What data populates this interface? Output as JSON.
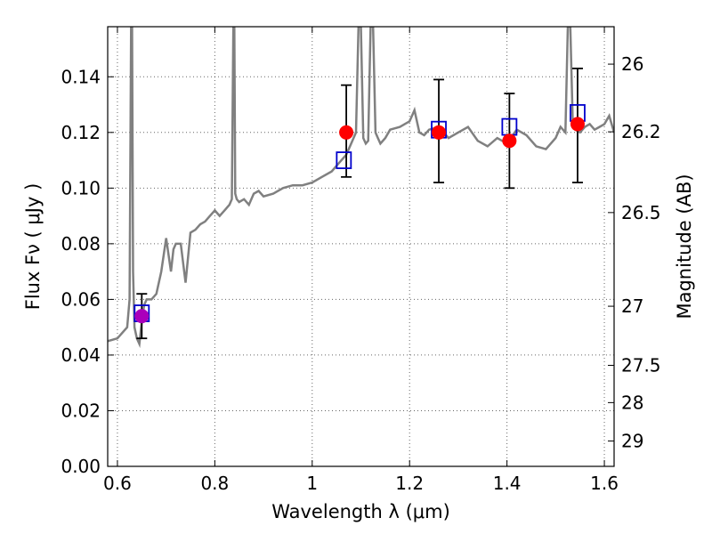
{
  "chart_data": {
    "type": "scatter",
    "xlabel": "Wavelength  λ (μm)",
    "ylabel": "Flux  Fν  ( μJy )",
    "ylabel_right": "Magnitude (AB)",
    "xlim": [
      0.58,
      1.62
    ],
    "ylim": [
      0.0,
      0.158
    ],
    "grid": true,
    "x_ticks": [
      0.6,
      0.8,
      1.0,
      1.2,
      1.4,
      1.6
    ],
    "x_tick_labels": [
      "0.6",
      "0.8",
      "1",
      "1.2",
      "1.4",
      "1.6"
    ],
    "y_ticks": [
      0.0,
      0.02,
      0.04,
      0.06,
      0.08,
      0.1,
      0.12,
      0.14
    ],
    "y_tick_labels": [
      "0.00",
      "0.02",
      "0.04",
      "0.06",
      "0.08",
      "0.10",
      "0.12",
      "0.14"
    ],
    "mag_ticks": [
      26,
      26.2,
      26.5,
      27,
      27.5,
      28,
      29
    ],
    "mag_tick_labels": [
      "26",
      "26.2",
      "26.5",
      "27",
      "27.5",
      "28",
      "29"
    ],
    "model_spectrum": {
      "color": "#808080",
      "x": [
        0.58,
        0.6,
        0.61,
        0.62,
        0.625,
        0.628,
        0.63,
        0.632,
        0.635,
        0.64,
        0.645,
        0.65,
        0.655,
        0.66,
        0.665,
        0.67,
        0.68,
        0.69,
        0.7,
        0.705,
        0.71,
        0.715,
        0.72,
        0.73,
        0.74,
        0.75,
        0.76,
        0.77,
        0.78,
        0.79,
        0.8,
        0.81,
        0.82,
        0.83,
        0.835,
        0.838,
        0.84,
        0.842,
        0.845,
        0.85,
        0.86,
        0.87,
        0.88,
        0.89,
        0.9,
        0.92,
        0.94,
        0.96,
        0.98,
        1.0,
        1.02,
        1.04,
        1.05,
        1.06,
        1.07,
        1.08,
        1.09,
        1.095,
        1.1,
        1.105,
        1.11,
        1.115,
        1.12,
        1.125,
        1.13,
        1.135,
        1.14,
        1.15,
        1.16,
        1.18,
        1.2,
        1.21,
        1.22,
        1.23,
        1.24,
        1.26,
        1.28,
        1.3,
        1.32,
        1.34,
        1.36,
        1.38,
        1.4,
        1.42,
        1.44,
        1.46,
        1.48,
        1.5,
        1.51,
        1.52,
        1.525,
        1.53,
        1.535,
        1.54,
        1.55,
        1.56,
        1.57,
        1.58,
        1.59,
        1.6,
        1.61,
        1.62
      ],
      "y": [
        0.045,
        0.046,
        0.048,
        0.05,
        0.06,
        0.158,
        0.158,
        0.07,
        0.05,
        0.046,
        0.044,
        0.052,
        0.058,
        0.06,
        0.06,
        0.06,
        0.062,
        0.07,
        0.082,
        0.076,
        0.07,
        0.078,
        0.08,
        0.08,
        0.066,
        0.084,
        0.085,
        0.087,
        0.088,
        0.09,
        0.092,
        0.09,
        0.092,
        0.094,
        0.096,
        0.158,
        0.158,
        0.098,
        0.096,
        0.095,
        0.096,
        0.094,
        0.098,
        0.099,
        0.097,
        0.098,
        0.1,
        0.101,
        0.101,
        0.102,
        0.104,
        0.106,
        0.108,
        0.11,
        0.112,
        0.116,
        0.12,
        0.158,
        0.158,
        0.118,
        0.116,
        0.117,
        0.158,
        0.158,
        0.12,
        0.118,
        0.116,
        0.118,
        0.121,
        0.122,
        0.124,
        0.128,
        0.12,
        0.119,
        0.121,
        0.122,
        0.118,
        0.12,
        0.122,
        0.117,
        0.115,
        0.118,
        0.116,
        0.121,
        0.119,
        0.115,
        0.114,
        0.118,
        0.122,
        0.12,
        0.158,
        0.158,
        0.124,
        0.121,
        0.12,
        0.122,
        0.123,
        0.121,
        0.122,
        0.123,
        0.126,
        0.12
      ]
    },
    "observed": {
      "color": "#ff0000",
      "points": [
        {
          "x": 0.65,
          "y": 0.054,
          "err_lo": 0.046,
          "err_hi": 0.062
        },
        {
          "x": 1.07,
          "y": 0.12,
          "err_lo": 0.104,
          "err_hi": 0.137
        },
        {
          "x": 1.26,
          "y": 0.12,
          "err_lo": 0.102,
          "err_hi": 0.139
        },
        {
          "x": 1.405,
          "y": 0.117,
          "err_lo": 0.1,
          "err_hi": 0.134
        },
        {
          "x": 1.545,
          "y": 0.123,
          "err_lo": 0.102,
          "err_hi": 0.143
        }
      ]
    },
    "model_photometry": {
      "color": "#0000cc",
      "points": [
        {
          "x": 0.65,
          "y": 0.055
        },
        {
          "x": 1.065,
          "y": 0.11
        },
        {
          "x": 1.26,
          "y": 0.121
        },
        {
          "x": 1.405,
          "y": 0.122
        },
        {
          "x": 1.545,
          "y": 0.127
        }
      ]
    },
    "first_point_color": "#aa00bb"
  }
}
